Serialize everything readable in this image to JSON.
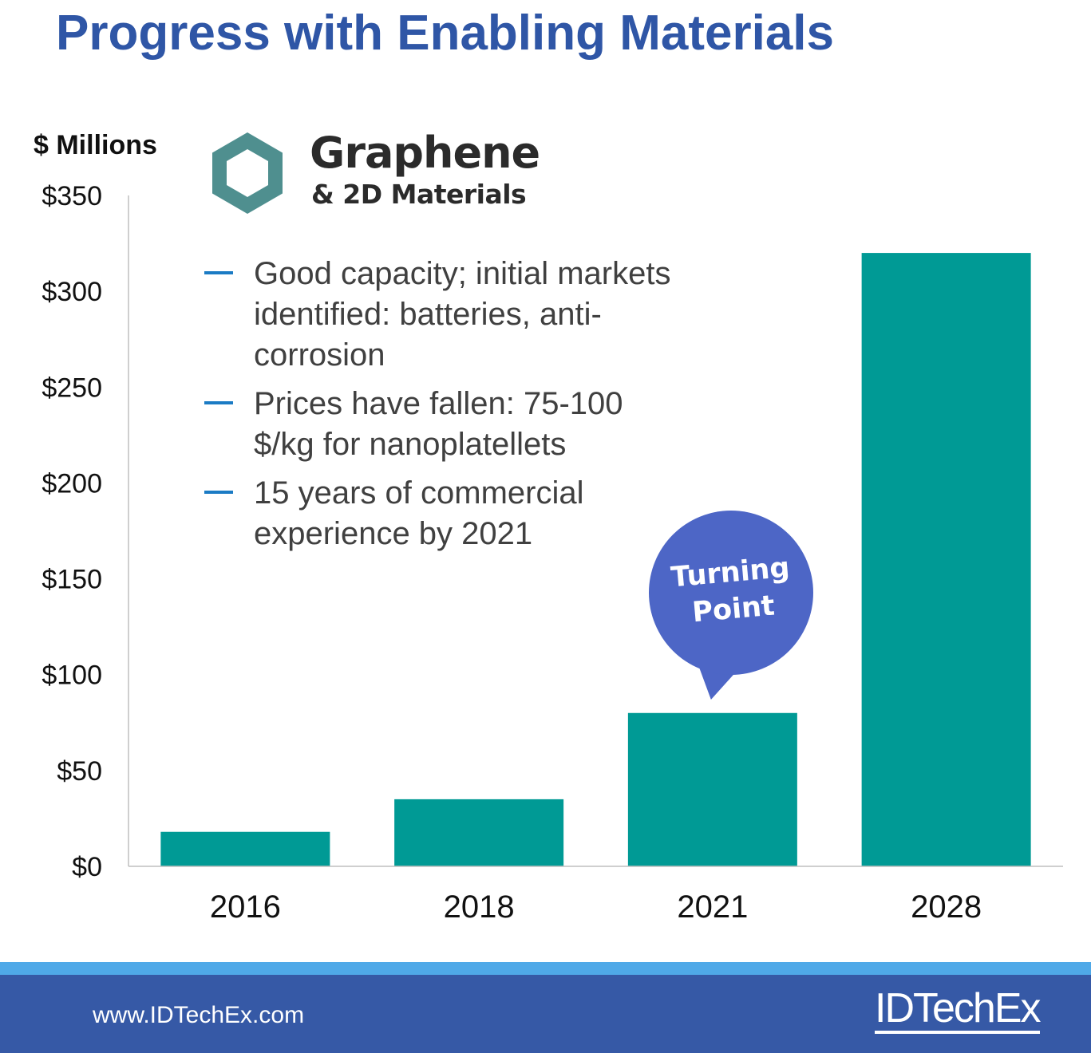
{
  "header": {
    "title": "Progress with Enabling Materials"
  },
  "logo": {
    "icon": "hexagon-icon",
    "title": "Graphene",
    "subtitle": "& 2D Materials",
    "color": "#4f8f8f"
  },
  "bullets": [
    {
      "text": "Good capacity; initial markets identified: batteries, anti-corrosion"
    },
    {
      "text": "Prices have fallen: 75-100 $/kg for nanoplatellets"
    },
    {
      "text": "15 years of commercial experience by 2021"
    }
  ],
  "callout": {
    "line1": "Turning",
    "line2": "Point",
    "color": "#4d66c6",
    "target_category": "2021"
  },
  "chart_data": {
    "type": "bar",
    "title": "",
    "xlabel": "",
    "ylabel": "$ Millions",
    "categories": [
      "2016",
      "2018",
      "2021",
      "2028"
    ],
    "values": [
      18,
      35,
      80,
      320
    ],
    "ylim": [
      0,
      350
    ],
    "yticks": [
      0,
      50,
      100,
      150,
      200,
      250,
      300,
      350
    ],
    "ytick_labels": [
      "$0",
      "$50",
      "$100",
      "$150",
      "$200",
      "$250",
      "$300",
      "$350"
    ],
    "bar_color": "#009a95",
    "grid": false
  },
  "footer": {
    "url": "www.IDTechEx.com",
    "brand": "IDTechEx",
    "bar_color": "#3659a6",
    "stripe_color": "#4fa9e8"
  }
}
